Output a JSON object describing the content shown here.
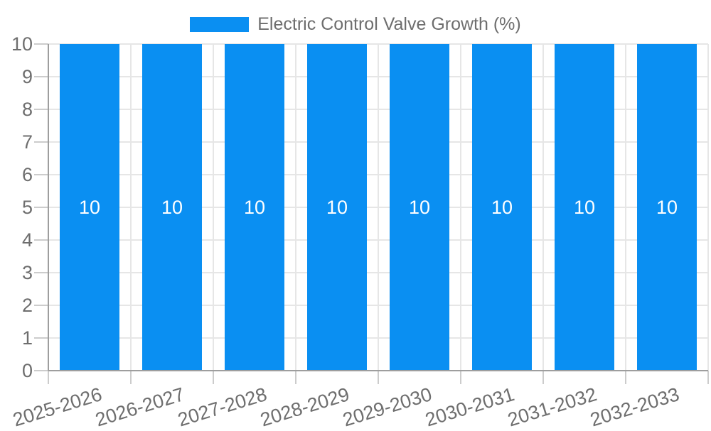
{
  "legend": {
    "label": "Electric Control Valve Growth (%)"
  },
  "chart_data": {
    "type": "bar",
    "title": "Electric Control Valve Growth (%)",
    "categories": [
      "2025-2026",
      "2026-2027",
      "2027-2028",
      "2028-2029",
      "2029-2030",
      "2030-2031",
      "2031-2032",
      "2032-2033"
    ],
    "values": [
      10,
      10,
      10,
      10,
      10,
      10,
      10,
      10
    ],
    "bar_value_labels": [
      "10",
      "10",
      "10",
      "10",
      "10",
      "10",
      "10",
      "10"
    ],
    "xlabel": "",
    "ylabel": "",
    "ylim": [
      0,
      10
    ],
    "yticks": [
      0,
      1,
      2,
      3,
      4,
      5,
      6,
      7,
      8,
      9,
      10
    ],
    "grid": true,
    "legend_position": "top-center",
    "x_label_rotation_deg": -17,
    "colors": {
      "bar": "#0a8ff2",
      "bar_label_text": "#ffffff",
      "axis_text": "#6e6e6e",
      "grid_line": "#e6e6e6",
      "axis_line": "#9e9e9e",
      "tick_mark": "#cccccc",
      "background": "#ffffff"
    }
  }
}
